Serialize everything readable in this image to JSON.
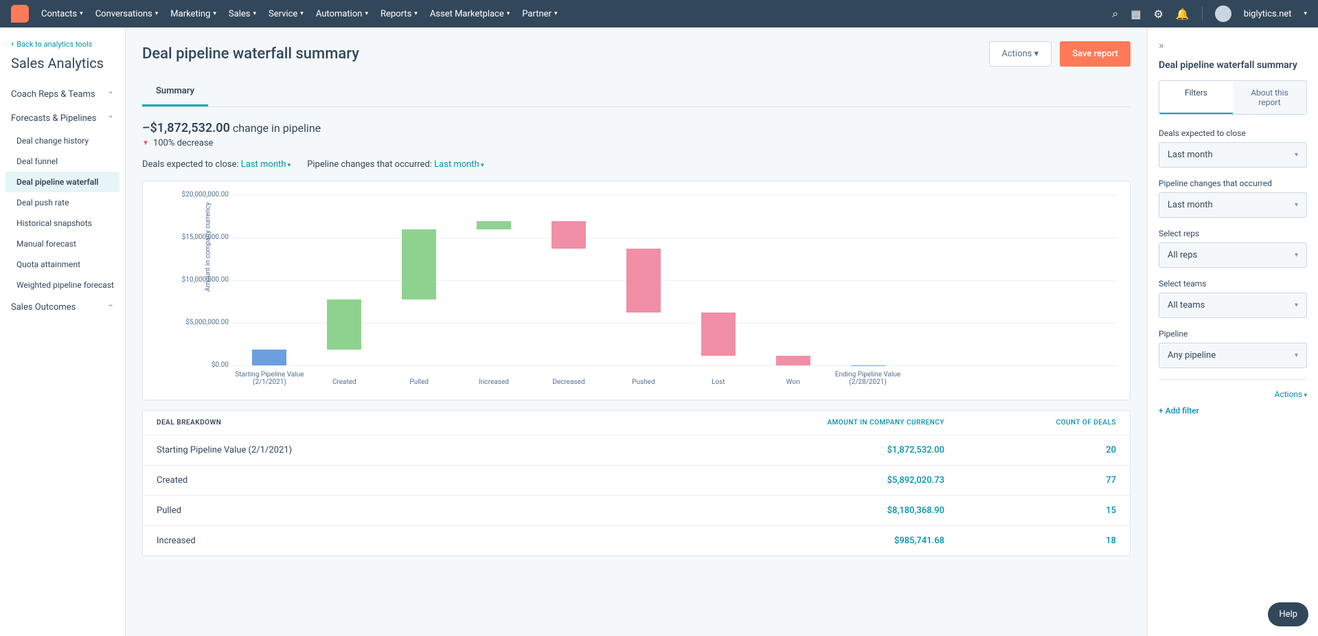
{
  "topNav": {
    "items": [
      "Contacts",
      "Conversations",
      "Marketing",
      "Sales",
      "Service",
      "Automation",
      "Reports",
      "Asset Marketplace",
      "Partner"
    ],
    "account": "biglytics.net"
  },
  "sidebar": {
    "backLink": "Back to analytics tools",
    "title": "Sales Analytics",
    "sections": [
      {
        "label": "Coach Reps & Teams",
        "expanded": true,
        "items": []
      },
      {
        "label": "Forecasts & Pipelines",
        "expanded": true,
        "items": [
          "Deal change history",
          "Deal funnel",
          "Deal pipeline waterfall",
          "Deal push rate",
          "Historical snapshots",
          "Manual forecast",
          "Quota attainment",
          "Weighted pipeline forecast"
        ],
        "activeIndex": 2
      },
      {
        "label": "Sales Outcomes",
        "expanded": false,
        "items": []
      }
    ]
  },
  "page": {
    "title": "Deal pipeline waterfall summary",
    "actionsBtn": "Actions",
    "saveBtn": "Save report",
    "tab": "Summary",
    "changeValue": "–$1,872,532.00",
    "changeLabel": "change in pipeline",
    "decreaseText": "100% decrease",
    "filter1Label": "Deals expected to close:",
    "filter1Value": "Last month",
    "filter2Label": "Pipeline changes that occurred:",
    "filter2Value": "Last month"
  },
  "chart": {
    "yAxisLabel": "Amount in company currency",
    "yTicks": [
      "$20,000,000.00",
      "$15,000,000.00",
      "$10,000,000.00",
      "$5,000,000.00",
      "$0.00"
    ],
    "yMax": 20000000,
    "bars": [
      {
        "label": "Starting Pipeline Value (2/1/2021)",
        "start": 0,
        "end": 1872532,
        "color": "#6a9fe0"
      },
      {
        "label": "Created",
        "start": 1872532,
        "end": 7764553,
        "color": "#8fd28f"
      },
      {
        "label": "Pulled",
        "start": 7764553,
        "end": 15944922,
        "color": "#8fd28f"
      },
      {
        "label": "Increased",
        "start": 15944922,
        "end": 16930663,
        "color": "#8fd28f"
      },
      {
        "label": "Decreased",
        "start": 16930663,
        "end": 13688208,
        "color": "#f08fa6"
      },
      {
        "label": "Pushed",
        "start": 13688208,
        "end": 6209341,
        "color": "#f08fa6"
      },
      {
        "label": "Lost",
        "start": 6209341,
        "end": 1089341,
        "color": "#f08fa6"
      },
      {
        "label": "Won",
        "start": 1089341,
        "end": 0,
        "color": "#f08fa6"
      },
      {
        "label": "Ending Pipeline Value (2/28/2021)",
        "start": 0,
        "end": 0,
        "color": "#6a9fe0"
      }
    ]
  },
  "table": {
    "headers": [
      "DEAL BREAKDOWN",
      "AMOUNT IN COMPANY CURRENCY",
      "COUNT OF DEALS"
    ],
    "rows": [
      {
        "breakdown": "Starting Pipeline Value (2/1/2021)",
        "amount": "$1,872,532.00",
        "count": "20"
      },
      {
        "breakdown": "Created",
        "amount": "$5,892,020.73",
        "count": "77"
      },
      {
        "breakdown": "Pulled",
        "amount": "$8,180,368.90",
        "count": "15"
      },
      {
        "breakdown": "Increased",
        "amount": "$985,741.68",
        "count": "18"
      }
    ]
  },
  "rightPanel": {
    "title": "Deal pipeline waterfall summary",
    "tabs": [
      "Filters",
      "About this report"
    ],
    "filters": [
      {
        "label": "Deals expected to close",
        "value": "Last month"
      },
      {
        "label": "Pipeline changes that occurred",
        "value": "Last month"
      },
      {
        "label": "Select reps",
        "value": "All reps"
      },
      {
        "label": "Select teams",
        "value": "All teams"
      },
      {
        "label": "Pipeline",
        "value": "Any pipeline"
      }
    ],
    "actionsLink": "Actions",
    "addFilter": "Add filter"
  },
  "helpBtn": "Help"
}
